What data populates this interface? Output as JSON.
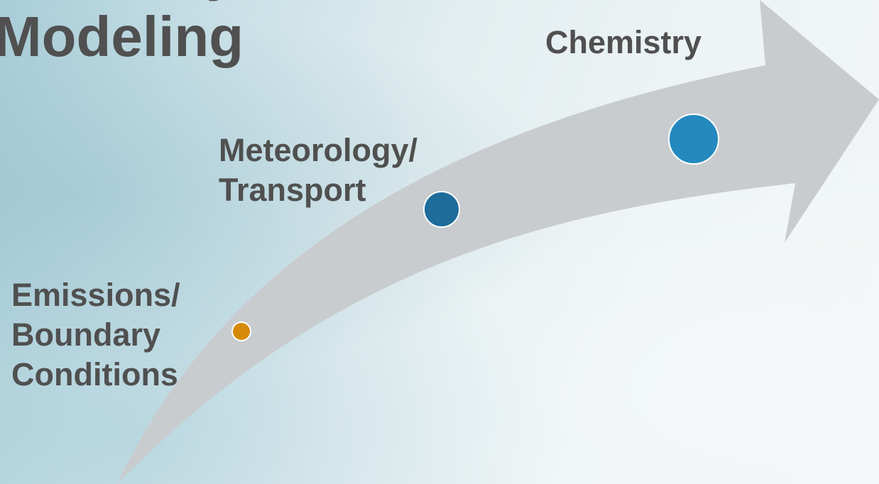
{
  "title": {
    "line_partial": "y",
    "line": "Modeling"
  },
  "stages": [
    {
      "lines": [
        "Emissions/",
        "Boundary",
        "Conditions"
      ],
      "dot_color": "#d48a08"
    },
    {
      "lines": [
        "Meteorology/",
        "Transport"
      ],
      "dot_color": "#1d6c9a"
    },
    {
      "lines": [
        "Chemistry"
      ],
      "dot_color": "#2389bf"
    }
  ],
  "colors": {
    "arrow": "#c9cccf",
    "text": "#505050",
    "dot_outline": "#ffffff"
  }
}
